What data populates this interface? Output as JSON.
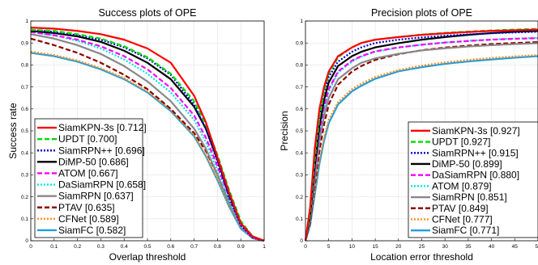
{
  "chart_data": [
    {
      "type": "line",
      "title": "Success plots of OPE",
      "xlabel": "Overlap threshold",
      "ylabel": "Success rate",
      "xlim": [
        0,
        1
      ],
      "ylim": [
        0,
        1
      ],
      "xticks": [
        "0",
        "0.1",
        "0.2",
        "0.3",
        "0.4",
        "0.5",
        "0.6",
        "0.7",
        "0.8",
        "0.9",
        "1"
      ],
      "yticks": [
        "0",
        "0.1",
        "0.2",
        "0.3",
        "0.4",
        "0.5",
        "0.6",
        "0.7",
        "0.8",
        "0.9",
        "1"
      ],
      "grid": "on",
      "legend_position": "bottom-left",
      "x": [
        0,
        0.1,
        0.2,
        0.3,
        0.4,
        0.5,
        0.6,
        0.7,
        0.75,
        0.8,
        0.85,
        0.9,
        0.95,
        1
      ],
      "series": [
        {
          "name": "SiamKPN-3s [0.712]",
          "color": "#ff0000",
          "dash": "solid",
          "values": [
            0.97,
            0.965,
            0.955,
            0.94,
            0.915,
            0.875,
            0.81,
            0.66,
            0.54,
            0.38,
            0.22,
            0.08,
            0.02,
            0
          ]
        },
        {
          "name": "UPDT [0.700]",
          "color": "#00dd00",
          "dash": "dash",
          "values": [
            0.96,
            0.955,
            0.94,
            0.92,
            0.885,
            0.835,
            0.76,
            0.635,
            0.53,
            0.39,
            0.23,
            0.09,
            0.02,
            0
          ]
        },
        {
          "name": "SiamRPN++ [0.696]",
          "color": "#0000cc",
          "dash": "dot",
          "values": [
            0.96,
            0.95,
            0.935,
            0.915,
            0.88,
            0.83,
            0.755,
            0.62,
            0.51,
            0.36,
            0.2,
            0.07,
            0.015,
            0
          ]
        },
        {
          "name": "DiMP-50 [0.686]",
          "color": "#000000",
          "dash": "solid",
          "values": [
            0.955,
            0.945,
            0.93,
            0.905,
            0.865,
            0.81,
            0.735,
            0.61,
            0.51,
            0.37,
            0.21,
            0.08,
            0.02,
            0
          ]
        },
        {
          "name": "ATOM [0.667]",
          "color": "#ff00ff",
          "dash": "dash",
          "values": [
            0.95,
            0.935,
            0.915,
            0.885,
            0.84,
            0.78,
            0.695,
            0.57,
            0.47,
            0.34,
            0.2,
            0.07,
            0.015,
            0
          ]
        },
        {
          "name": "DaSiamRPN [0.658]",
          "color": "#00e5e5",
          "dash": "dot",
          "values": [
            0.95,
            0.935,
            0.91,
            0.875,
            0.825,
            0.76,
            0.675,
            0.55,
            0.45,
            0.32,
            0.18,
            0.065,
            0.015,
            0
          ]
        },
        {
          "name": "SiamRPN [0.637]",
          "color": "#888888",
          "dash": "solid",
          "values": [
            0.94,
            0.92,
            0.89,
            0.85,
            0.795,
            0.725,
            0.635,
            0.51,
            0.42,
            0.3,
            0.17,
            0.06,
            0.013,
            0
          ]
        },
        {
          "name": "PTAV [0.635]",
          "color": "#8b0000",
          "dash": "dash",
          "values": [
            0.92,
            0.89,
            0.855,
            0.81,
            0.755,
            0.69,
            0.6,
            0.49,
            0.41,
            0.3,
            0.18,
            0.07,
            0.02,
            0
          ]
        },
        {
          "name": "CFNet [0.589]",
          "color": "#ff8c1a",
          "dash": "dot",
          "values": [
            0.86,
            0.845,
            0.82,
            0.785,
            0.74,
            0.68,
            0.595,
            0.48,
            0.39,
            0.28,
            0.16,
            0.06,
            0.013,
            0
          ]
        },
        {
          "name": "SiamFC [0.582]",
          "color": "#1e9fe0",
          "dash": "solid",
          "values": [
            0.855,
            0.84,
            0.815,
            0.78,
            0.735,
            0.675,
            0.59,
            0.475,
            0.385,
            0.275,
            0.155,
            0.055,
            0.012,
            0
          ]
        }
      ]
    },
    {
      "type": "line",
      "title": "Precision plots of OPE",
      "xlabel": "Location error threshold",
      "ylabel": "Precision",
      "xlim": [
        0,
        50
      ],
      "ylim": [
        0,
        1
      ],
      "xticks": [
        "0",
        "5",
        "10",
        "15",
        "20",
        "25",
        "30",
        "35",
        "40",
        "45",
        "50"
      ],
      "yticks": [
        "0",
        "0.1",
        "0.2",
        "0.3",
        "0.4",
        "0.5",
        "0.6",
        "0.7",
        "0.8",
        "0.9",
        "1"
      ],
      "grid": "on",
      "legend_position": "bottom-right",
      "x": [
        0,
        1,
        2,
        3,
        4,
        5,
        7,
        10,
        12,
        15,
        20,
        25,
        30,
        35,
        40,
        45,
        50
      ],
      "series": [
        {
          "name": "SiamKPN-3s [0.927]",
          "color": "#ff0000",
          "dash": "solid",
          "values": [
            0,
            0.15,
            0.42,
            0.6,
            0.7,
            0.77,
            0.84,
            0.88,
            0.9,
            0.915,
            0.927,
            0.937,
            0.944,
            0.95,
            0.955,
            0.958,
            0.961
          ]
        },
        {
          "name": "UPDT [0.927]",
          "color": "#00dd00",
          "dash": "dash",
          "values": [
            0,
            0.12,
            0.37,
            0.56,
            0.68,
            0.76,
            0.835,
            0.88,
            0.9,
            0.915,
            0.927,
            0.938,
            0.946,
            0.952,
            0.957,
            0.961,
            0.964
          ]
        },
        {
          "name": "SiamRPN++ [0.915]",
          "color": "#0000cc",
          "dash": "dot",
          "values": [
            0,
            0.13,
            0.38,
            0.56,
            0.67,
            0.745,
            0.815,
            0.86,
            0.88,
            0.9,
            0.915,
            0.925,
            0.933,
            0.939,
            0.944,
            0.948,
            0.951
          ]
        },
        {
          "name": "DiMP-50 [0.899]",
          "color": "#000000",
          "dash": "solid",
          "values": [
            0,
            0.11,
            0.34,
            0.52,
            0.64,
            0.72,
            0.795,
            0.84,
            0.86,
            0.88,
            0.899,
            0.915,
            0.927,
            0.937,
            0.945,
            0.951,
            0.955
          ]
        },
        {
          "name": "DaSiamRPN [0.880]",
          "color": "#ff00ff",
          "dash": "dash",
          "values": [
            0,
            0.1,
            0.31,
            0.49,
            0.61,
            0.69,
            0.77,
            0.82,
            0.84,
            0.862,
            0.88,
            0.892,
            0.902,
            0.909,
            0.915,
            0.919,
            0.922
          ]
        },
        {
          "name": "ATOM [0.879]",
          "color": "#00e5e5",
          "dash": "dot",
          "values": [
            0,
            0.1,
            0.31,
            0.48,
            0.6,
            0.68,
            0.765,
            0.815,
            0.838,
            0.86,
            0.879,
            0.892,
            0.902,
            0.91,
            0.916,
            0.92,
            0.923
          ]
        },
        {
          "name": "SiamRPN [0.851]",
          "color": "#888888",
          "dash": "solid",
          "values": [
            0,
            0.09,
            0.28,
            0.45,
            0.57,
            0.65,
            0.735,
            0.785,
            0.81,
            0.83,
            0.851,
            0.866,
            0.876,
            0.884,
            0.89,
            0.895,
            0.899
          ]
        },
        {
          "name": "PTAV [0.849]",
          "color": "#8b0000",
          "dash": "dash",
          "values": [
            0,
            0.08,
            0.25,
            0.41,
            0.53,
            0.62,
            0.71,
            0.77,
            0.795,
            0.823,
            0.849,
            0.867,
            0.879,
            0.888,
            0.895,
            0.9,
            0.904
          ]
        },
        {
          "name": "CFNet [0.777]",
          "color": "#ff8c1a",
          "dash": "dot",
          "values": [
            0,
            0.08,
            0.23,
            0.37,
            0.47,
            0.55,
            0.63,
            0.69,
            0.715,
            0.745,
            0.777,
            0.797,
            0.812,
            0.823,
            0.832,
            0.839,
            0.845
          ]
        },
        {
          "name": "SiamFC [0.771]",
          "color": "#1e9fe0",
          "dash": "solid",
          "values": [
            0,
            0.07,
            0.21,
            0.35,
            0.455,
            0.535,
            0.62,
            0.68,
            0.705,
            0.737,
            0.771,
            0.79,
            0.805,
            0.816,
            0.825,
            0.833,
            0.84
          ]
        }
      ]
    }
  ]
}
